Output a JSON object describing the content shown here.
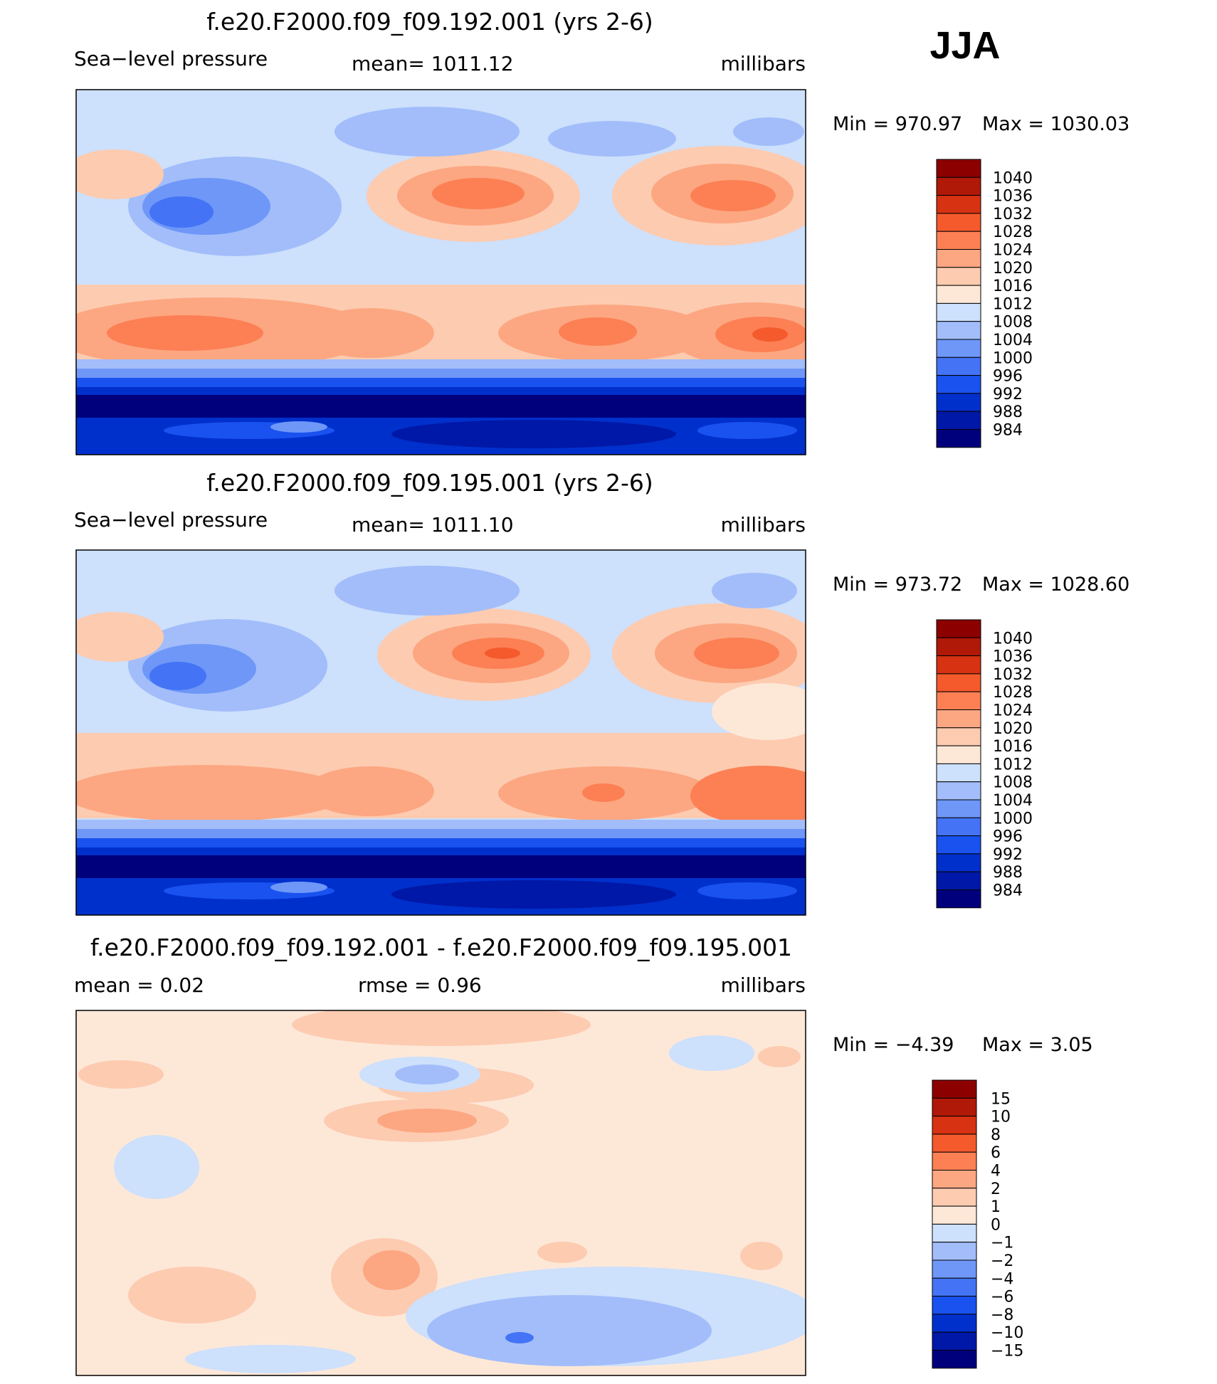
{
  "season": "JJA",
  "colors": {
    "slp": [
      "#00007d",
      "#0018a7",
      "#0030cc",
      "#1a52f0",
      "#4474f5",
      "#6e97f8",
      "#a2bdfa",
      "#cde0fc",
      "#fde8d8",
      "#fdcbb0",
      "#fca782",
      "#fc8054",
      "#f45a2c",
      "#d73212",
      "#b01808",
      "#8c0000"
    ],
    "diff": [
      "#00007d",
      "#0018a7",
      "#0030cc",
      "#1a52f0",
      "#4474f5",
      "#6e97f8",
      "#a2bdfa",
      "#cde0fc",
      "#fde8d8",
      "#fdcbb0",
      "#fca782",
      "#fc8054",
      "#f45a2c",
      "#d73212",
      "#b01808",
      "#8c0000"
    ]
  },
  "chart_data": [
    {
      "type": "heatmap",
      "title": "f.e20.F2000.f09_f09.192.001 (yrs 2-6)",
      "left_label": "Sea−level pressure",
      "center_label": "mean=  1011.12",
      "right_label": "millibars",
      "min_label": "Min  =  970.97",
      "max_label": "Max  =  1030.03",
      "min": 970.97,
      "max": 1030.03,
      "legend_levels": [
        "1040",
        "1036",
        "1032",
        "1028",
        "1024",
        "1020",
        "1016",
        "1012",
        "1008",
        "1004",
        "1000",
        "996",
        "992",
        "988",
        "984"
      ]
    },
    {
      "type": "heatmap",
      "title": "f.e20.F2000.f09_f09.195.001 (yrs 2-6)",
      "left_label": "Sea−level pressure",
      "center_label": "mean=  1011.10",
      "right_label": "millibars",
      "min_label": "Min  =  973.72",
      "max_label": "Max  =  1028.60",
      "min": 973.72,
      "max": 1028.6,
      "legend_levels": [
        "1040",
        "1036",
        "1032",
        "1028",
        "1024",
        "1020",
        "1016",
        "1012",
        "1008",
        "1004",
        "1000",
        "996",
        "992",
        "988",
        "984"
      ]
    },
    {
      "type": "heatmap",
      "title": "f.e20.F2000.f09_f09.192.001 - f.e20.F2000.f09_f09.195.001",
      "left_label": "mean  =     0.02",
      "center_label": "rmse  =     0.96",
      "right_label": "millibars",
      "min_label": "Min  =   −4.39",
      "max_label": "Max  =      3.05",
      "min": -4.39,
      "max": 3.05,
      "legend_levels": [
        "15",
        "10",
        "8",
        "6",
        "4",
        "2",
        "1",
        "0",
        "−1",
        "−2",
        "−4",
        "−6",
        "−8",
        "−10",
        "−15"
      ]
    }
  ]
}
